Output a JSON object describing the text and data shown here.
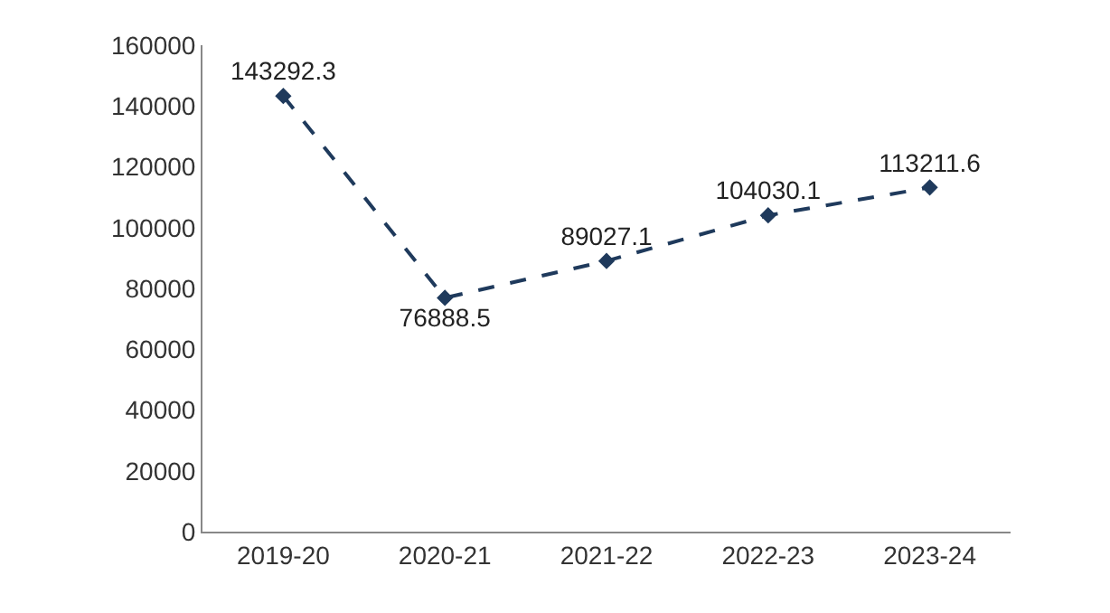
{
  "chart_data": {
    "type": "line",
    "categories": [
      "2019-20",
      "2020-21",
      "2021-22",
      "2022-23",
      "2023-24"
    ],
    "series": [
      {
        "color": "#1f3a5c",
        "values": [
          143292.3,
          76888.5,
          89027.1,
          104030.1,
          113211.6
        ]
      }
    ],
    "ylim": [
      0,
      160000
    ],
    "yticks": [
      0,
      20000,
      40000,
      60000,
      80000,
      100000,
      120000,
      140000,
      160000
    ],
    "data_labels": true,
    "marker": "diamond",
    "line_style": "dashed",
    "legend": false
  }
}
